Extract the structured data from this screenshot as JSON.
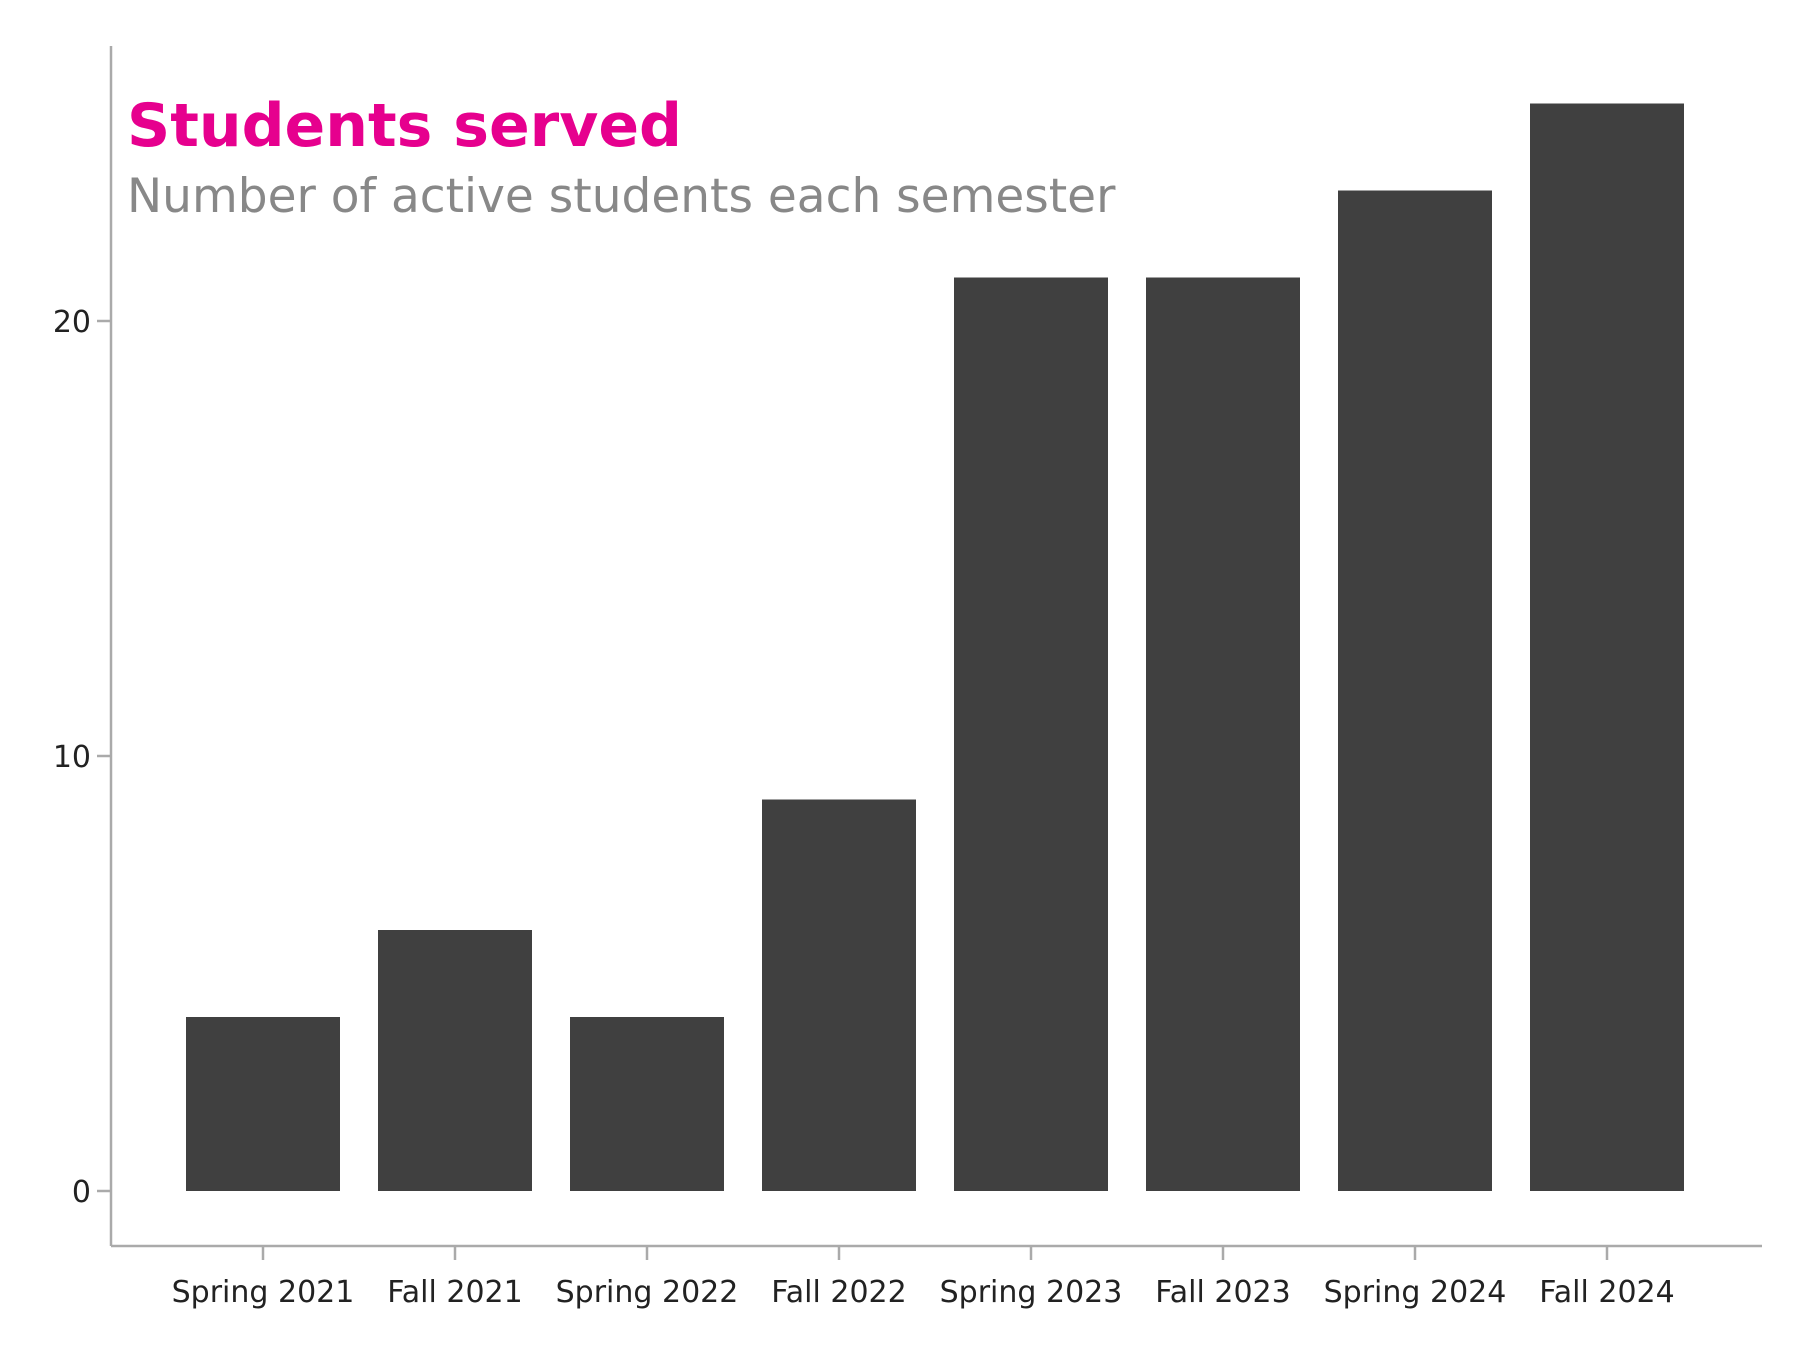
{
  "chart_data": {
    "type": "bar",
    "title": "Students served",
    "subtitle": "Number of active students each semester",
    "xlabel": "",
    "ylabel": "",
    "categories": [
      "Spring 2021",
      "Fall 2021",
      "Spring 2022",
      "Fall 2022",
      "Spring 2023",
      "Fall 2023",
      "Spring 2024",
      "Fall 2024"
    ],
    "values": [
      4,
      6,
      4,
      9,
      21,
      21,
      23,
      25
    ],
    "yticks": [
      0,
      10,
      20
    ],
    "ytick_labels": [
      "0",
      "10",
      "20"
    ],
    "ylim": [
      -1.25,
      27
    ],
    "grid": false,
    "legend": "none"
  },
  "colors": {
    "title": "#e6008e",
    "subtitle": "#888888",
    "bar": "#404040",
    "axis": "#aaaaaa",
    "tick_label": "#222222",
    "background": "#ffffff"
  }
}
